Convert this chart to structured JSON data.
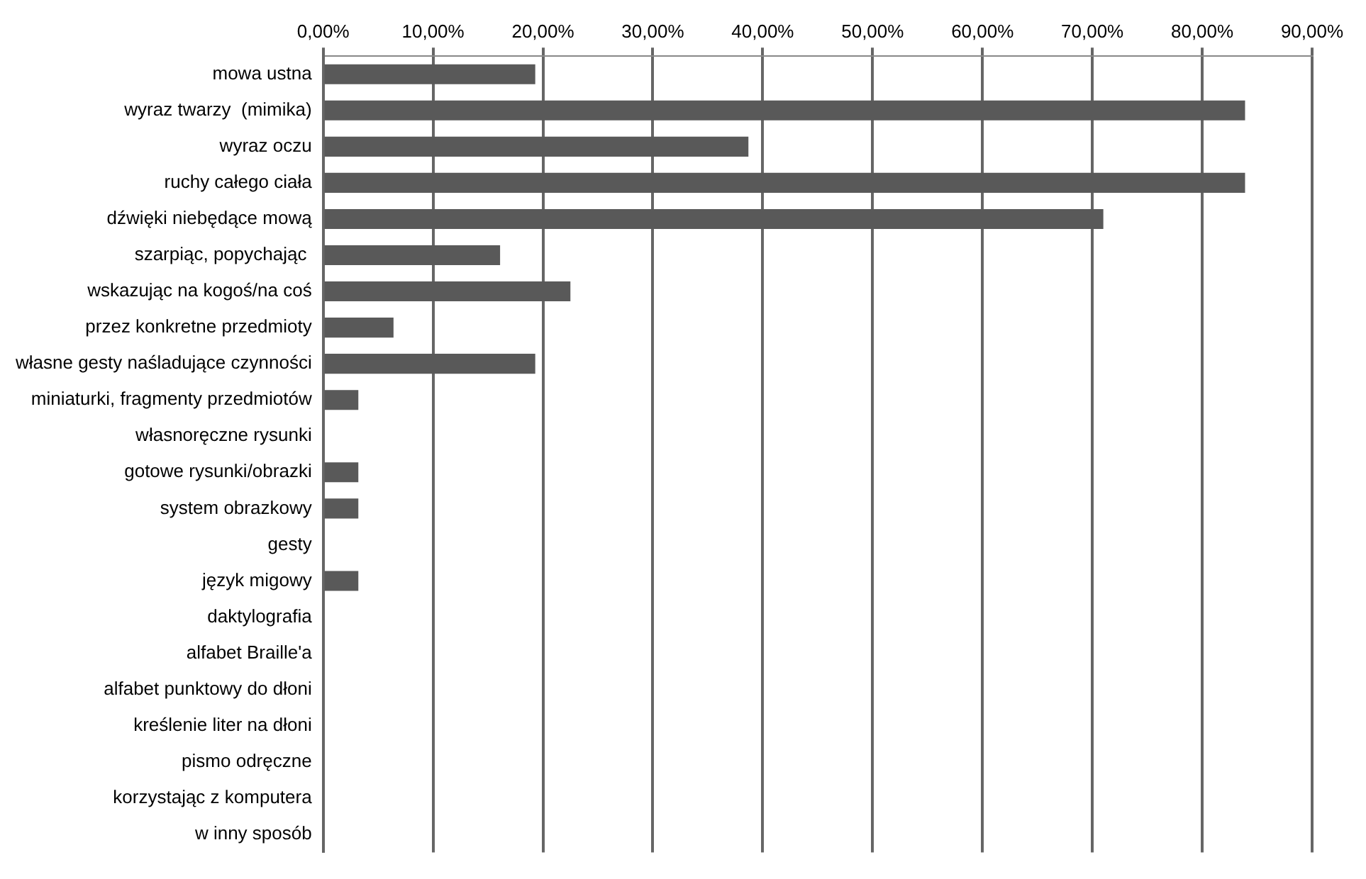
{
  "chart_data": {
    "type": "bar",
    "orientation": "horizontal",
    "categories": [
      "mowa ustna",
      "wyraz twarzy  (mimika)",
      "wyraz oczu",
      "ruchy całego ciała",
      "dźwięki niebędące mową",
      "szarpiąc, popychając ",
      "wskazując na kogoś/na coś",
      "przez konkretne przedmioty",
      "własne gesty naśladujące czynności",
      "miniaturki, fragmenty przedmiotów",
      "własnoręczne rysunki",
      "gotowe rysunki/obrazki",
      "system obrazkowy",
      "gesty",
      "język migowy",
      "daktylografia",
      "alfabet Braille'a",
      "alfabet punktowy do dłoni",
      "kreślenie liter na dłoni",
      "pismo odręczne",
      "korzystając z komputera",
      "w inny sposób"
    ],
    "values": [
      19.3,
      83.9,
      38.7,
      83.9,
      71.0,
      16.1,
      22.5,
      6.4,
      19.3,
      3.2,
      0,
      3.2,
      3.2,
      0,
      3.2,
      0,
      0,
      0,
      0,
      0,
      0,
      0
    ],
    "color": "#595959",
    "xlim": [
      0,
      90
    ],
    "xticks": [
      {
        "value": 0,
        "label": "0,00%"
      },
      {
        "value": 10,
        "label": "10,00%"
      },
      {
        "value": 20,
        "label": "20,00%"
      },
      {
        "value": 30,
        "label": "30,00%"
      },
      {
        "value": 40,
        "label": "40,00%"
      },
      {
        "value": 50,
        "label": "50,00%"
      },
      {
        "value": 60,
        "label": "60,00%"
      },
      {
        "value": 70,
        "label": "70,00%"
      },
      {
        "value": 80,
        "label": "80,00%"
      },
      {
        "value": 90,
        "label": "90,00%"
      }
    ],
    "grid": "x",
    "legend": false
  }
}
